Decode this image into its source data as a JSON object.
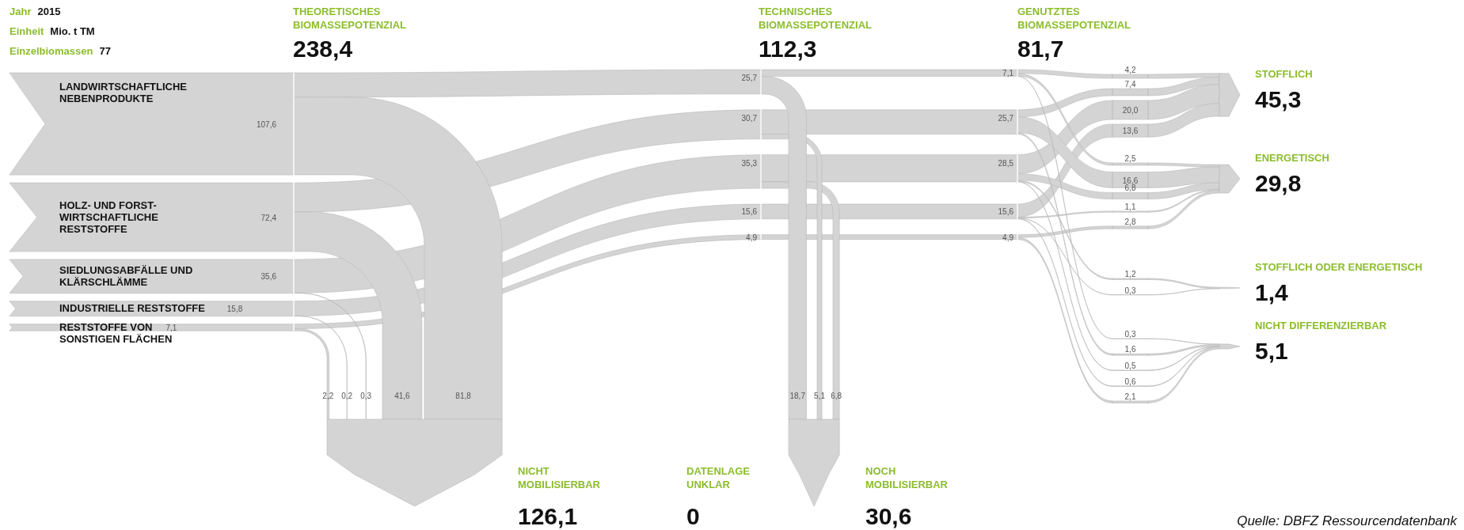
{
  "chart_data": {
    "type": "other",
    "color": "#d4d4d4",
    "categories": [
      "LANDWIRTSCHAFTLICHE\nNEBENPRODUKTE",
      "HOLZ- UND FORST-\nWIRTSCHAFTLICHE\nRESTSTOFFE",
      "SIEDLUNGSABFÄLLE UND\nKLÄRSCHLÄMME",
      "INDUSTRIELLE RESTSTOFFE",
      "RESTSTOFFE VON\nSONSTIGEN FLÄCHEN",
      "THEORETISCHES\nBIOMASSEPOTENZIAL",
      "TECHNISCHES\nBIOMASSEPOTENZIAL",
      "NICHT\nMOBILISIERBAR",
      "GENUTZTES\nBIOMASSEPOTENZIAL",
      "NOCH\nMOBILISIERBAR",
      "DATENLAGE\nUNKLAR",
      "STOFFLICH",
      "ENERGETISCH",
      "STOFFLICH ODER ENERGETISCH",
      "NICHT DIFFERENZIERBAR"
    ],
    "values": [
      107.6,
      72.4,
      35.6,
      15.8,
      7.1,
      238.4,
      112.3,
      126.1,
      81.7,
      30.6,
      0,
      45.3,
      29.8,
      1.4,
      5.1
    ],
    "value_labels": [
      "107,6",
      "72,4",
      "35,6",
      "15,8",
      "7,1",
      "238,4",
      "112,3",
      "126,1",
      "81,7",
      "30,6",
      "0",
      "45,3",
      "29,8",
      "1,4",
      "5,1"
    ],
    "annotations": [
      "Jahr",
      "2015",
      "Einheit",
      "Mio. t TM",
      "Einzelbiomassen",
      "77",
      "25,7",
      "30,7",
      "35,3",
      "15,6",
      "4,9",
      "81,8",
      "41,6",
      "0,3",
      "0,2",
      "2,2",
      "7,1",
      "25,7",
      "28,5",
      "15,6",
      "4,9",
      "18,7",
      "5,1",
      "6,8",
      "4,2",
      "7,4",
      "20,0",
      "13,6",
      "2,5",
      "16,6",
      "6,8",
      "1,1",
      "2,8",
      "1,2",
      "0,3",
      "0,3",
      "1,6",
      "0,5",
      "0,6",
      "2,1",
      "Quelle: DBFZ Ressourcendatenbank"
    ]
  }
}
